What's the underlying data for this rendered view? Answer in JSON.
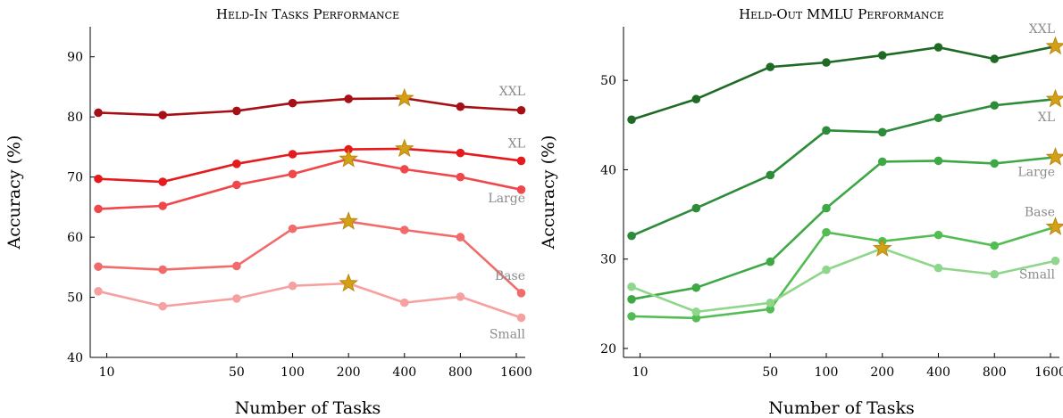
{
  "chart_data": [
    {
      "type": "line",
      "title": "Held-In Tasks Performance",
      "xlabel": "Number of Tasks",
      "ylabel": "Accuracy (%)",
      "x_scale": "log",
      "x": [
        9,
        20,
        50,
        100,
        200,
        400,
        800,
        1700
      ],
      "xticks": [
        "10",
        "50",
        "100",
        "200",
        "400",
        "800",
        "1600"
      ],
      "xtick_values": [
        10,
        50,
        100,
        200,
        400,
        800,
        1600
      ],
      "ylim": [
        40,
        95
      ],
      "yticks": [
        40,
        50,
        60,
        70,
        80,
        90
      ],
      "grid": false,
      "legend": "inline labels at right end",
      "series": [
        {
          "name": "XXL",
          "color": "#a50f15",
          "values": [
            80.7,
            80.3,
            81.0,
            82.3,
            83.0,
            83.1,
            81.7,
            81.1
          ],
          "best_index": 5
        },
        {
          "name": "XL",
          "color": "#e41a1c",
          "values": [
            69.7,
            69.2,
            72.2,
            73.8,
            74.6,
            74.7,
            74.0,
            72.7
          ],
          "best_index": 5
        },
        {
          "name": "Large",
          "color": "#f0474a",
          "values": [
            64.7,
            65.2,
            68.7,
            70.5,
            73.0,
            71.3,
            70.0,
            67.9
          ],
          "best_index": 4
        },
        {
          "name": "Base",
          "color": "#f26b6b",
          "values": [
            55.1,
            54.6,
            55.2,
            61.4,
            62.6,
            61.2,
            60.0,
            50.7
          ],
          "best_index": 4
        },
        {
          "name": "Small",
          "color": "#f7a0a0",
          "values": [
            51.0,
            48.5,
            49.8,
            51.9,
            52.3,
            49.1,
            50.1,
            46.6
          ],
          "best_index": 4
        }
      ]
    },
    {
      "type": "line",
      "title": "Held-Out MMLU Performance",
      "xlabel": "Number of Tasks",
      "ylabel": "Accuracy (%)",
      "x_scale": "log",
      "x": [
        9,
        20,
        50,
        100,
        200,
        400,
        800,
        1700
      ],
      "xticks": [
        "10",
        "50",
        "100",
        "200",
        "400",
        "800",
        "1600"
      ],
      "xtick_values": [
        10,
        50,
        100,
        200,
        400,
        800,
        1600
      ],
      "ylim": [
        19,
        56
      ],
      "yticks": [
        20,
        30,
        40,
        50
      ],
      "grid": false,
      "legend": "inline labels at right end",
      "series": [
        {
          "name": "XXL",
          "color": "#1f6b26",
          "values": [
            45.6,
            47.9,
            51.5,
            52.0,
            52.8,
            53.7,
            52.4,
            53.8
          ],
          "best_index": 7
        },
        {
          "name": "XL",
          "color": "#2e8b3a",
          "values": [
            32.6,
            35.7,
            39.4,
            44.4,
            44.2,
            45.8,
            47.2,
            47.9
          ],
          "best_index": 7
        },
        {
          "name": "Large",
          "color": "#3da844",
          "values": [
            25.5,
            26.8,
            29.7,
            35.7,
            40.9,
            41.0,
            40.7,
            41.4
          ],
          "best_index": 7
        },
        {
          "name": "Base",
          "color": "#52bd52",
          "values": [
            23.6,
            23.4,
            24.4,
            33.0,
            32.0,
            32.7,
            31.5,
            33.6
          ],
          "best_index": 7
        },
        {
          "name": "Small",
          "color": "#8ed68a",
          "values": [
            26.9,
            24.1,
            25.1,
            28.8,
            31.2,
            29.0,
            28.3,
            29.8
          ],
          "best_index": 4
        }
      ]
    }
  ],
  "style": {
    "star_fill": "#d4a017",
    "star_stroke": "#b8860b"
  }
}
